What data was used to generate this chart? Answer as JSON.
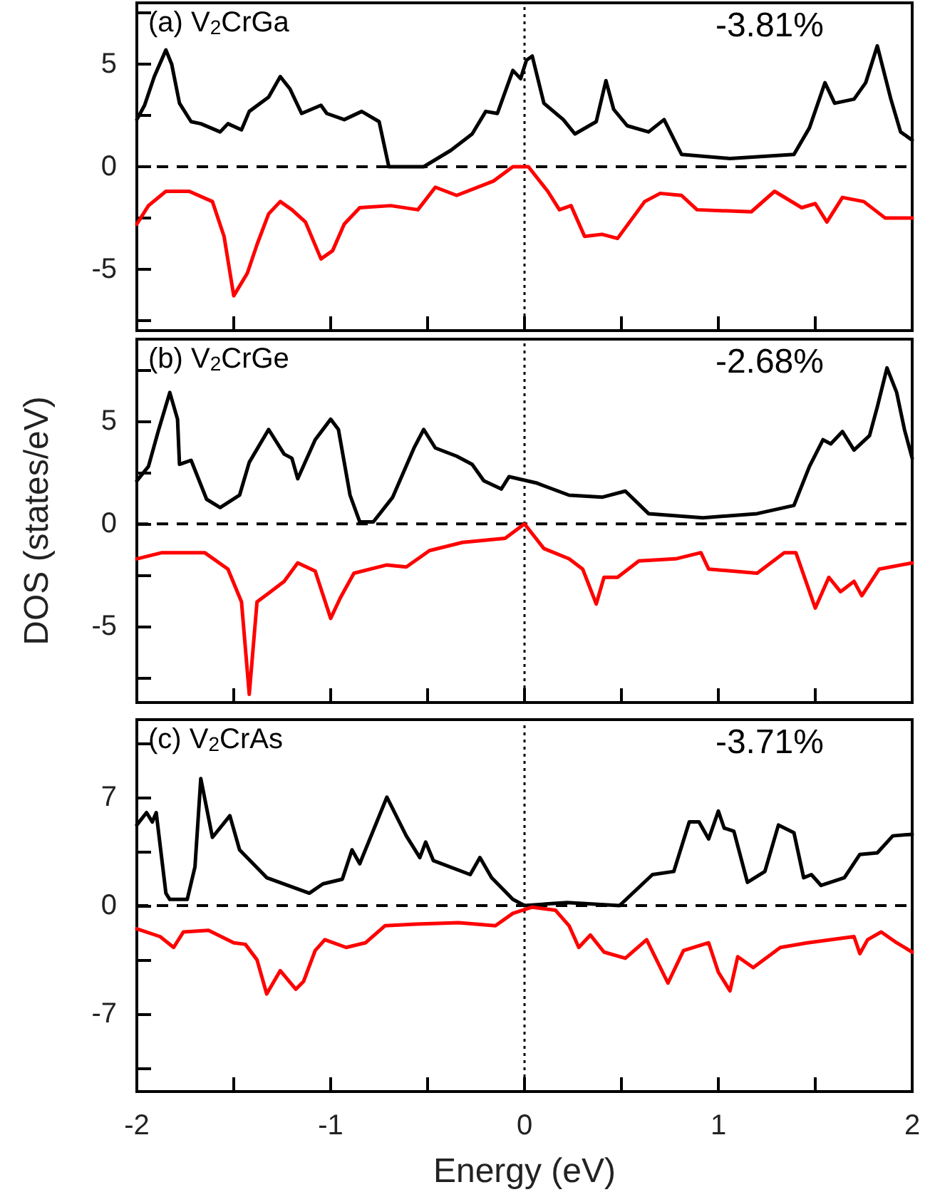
{
  "chart_data": [
    {
      "type": "line",
      "annotations": [
        "(a) V$_{2}$CrGa",
        "-3.81%"
      ],
      "xlim": [
        -2,
        2
      ],
      "ylim": [
        -8,
        8
      ],
      "xticks": [
        -2,
        {
          "value": -1.5,
          "label": null
        },
        -1,
        {
          "value": -0.5,
          "label": null
        },
        0,
        {
          "value": 0.5,
          "label": null
        },
        1,
        {
          "value": 1.5,
          "label": null
        },
        2
      ],
      "yticks": [
        {
          "value": -7.5,
          "label": null
        },
        -5,
        {
          "value": -2.5,
          "label": null
        },
        0,
        {
          "value": 2.5,
          "label": null
        },
        5,
        {
          "value": 7.5,
          "label": null
        }
      ],
      "tick_labels": "y",
      "line_style": "solid",
      "ref_lines": [
        {
          "axis": "y",
          "value": 0,
          "color": "#000000",
          "line_style": "dashed"
        },
        {
          "axis": "x",
          "value": 0,
          "color": "#000000",
          "line_style": "dotted"
        }
      ],
      "series": [
        {
          "color": "#000000",
          "x": [
            -2,
            -1.96,
            -1.91,
            -1.85,
            -1.82,
            -1.78,
            -1.72,
            -1.67,
            -1.57,
            -1.53,
            -1.46,
            -1.42,
            -1.32,
            -1.26,
            -1.21,
            -1.15,
            -1.1,
            -1.05,
            -1.02,
            -0.93,
            -0.84,
            -0.75,
            -0.7,
            -0.52,
            -0.38,
            -0.27,
            -0.2,
            -0.14,
            -0.06,
            -0.02,
            0.01,
            0.04,
            0.1,
            0.2,
            0.26,
            0.37,
            0.42,
            0.46,
            0.53,
            0.64,
            0.72,
            0.81,
            1.06,
            1.39,
            1.47,
            1.55,
            1.6,
            1.7,
            1.76,
            1.82,
            1.89,
            1.94,
            2
          ],
          "values": [
            2.3,
            3,
            4.4,
            5.7,
            5,
            3.1,
            2.2,
            2.1,
            1.7,
            2.1,
            1.8,
            2.7,
            3.4,
            4.4,
            3.8,
            2.6,
            2.8,
            3,
            2.6,
            2.3,
            2.7,
            2.2,
            0,
            0,
            0.8,
            1.6,
            2.7,
            2.6,
            4.7,
            4.3,
            5.2,
            5.4,
            3.1,
            2.3,
            1.6,
            2.2,
            4.2,
            2.8,
            2,
            1.7,
            2.3,
            0.6,
            0.4,
            0.6,
            1.9,
            4.1,
            3.1,
            3.3,
            4.1,
            5.9,
            3.3,
            1.7,
            1.3
          ]
        },
        {
          "color": "#ff0000",
          "x": [
            -2,
            -1.94,
            -1.85,
            -1.73,
            -1.61,
            -1.55,
            -1.5,
            -1.43,
            -1.38,
            -1.32,
            -1.26,
            -1.2,
            -1.13,
            -1.05,
            -0.99,
            -0.93,
            -0.85,
            -0.69,
            -0.55,
            -0.46,
            -0.35,
            -0.16,
            -0.06,
            0.02,
            0.12,
            0.18,
            0.24,
            0.31,
            0.4,
            0.48,
            0.62,
            0.7,
            0.81,
            0.89,
            1.17,
            1.29,
            1.43,
            1.5,
            1.56,
            1.64,
            1.75,
            1.86,
            2
          ],
          "values": [
            -2.8,
            -1.9,
            -1.2,
            -1.2,
            -1.7,
            -3.4,
            -6.3,
            -5.2,
            -3.8,
            -2.3,
            -1.7,
            -2.1,
            -2.7,
            -4.5,
            -4.1,
            -2.8,
            -2,
            -1.9,
            -2.1,
            -1,
            -1.4,
            -0.7,
            0,
            0,
            -1.2,
            -2.1,
            -1.9,
            -3.4,
            -3.3,
            -3.5,
            -1.7,
            -1.3,
            -1.4,
            -2.1,
            -2.2,
            -1.2,
            -2,
            -1.8,
            -2.7,
            -1.5,
            -1.7,
            -2.5,
            -2.5
          ]
        }
      ]
    },
    {
      "type": "line",
      "ylabel": "DOS (states/eV)",
      "annotations": [
        "(b) V$_{2}$CrGe",
        "-2.68%"
      ],
      "xlim": [
        -2,
        2
      ],
      "ylim": [
        -8.7,
        9
      ],
      "xticks": [
        -2,
        {
          "value": -1.5,
          "label": null
        },
        -1,
        {
          "value": -0.5,
          "label": null
        },
        0,
        {
          "value": 0.5,
          "label": null
        },
        1,
        {
          "value": 1.5,
          "label": null
        },
        2
      ],
      "yticks": [
        {
          "value": -7.5,
          "label": null
        },
        -5,
        {
          "value": -2.5,
          "label": null
        },
        0,
        {
          "value": 2.5,
          "label": null
        },
        5,
        {
          "value": 7.5,
          "label": null
        }
      ],
      "tick_labels": "y",
      "line_style": "solid",
      "ref_lines": [
        {
          "axis": "y",
          "value": 0,
          "color": "#000000",
          "line_style": "dashed"
        },
        {
          "axis": "x",
          "value": 0,
          "color": "#000000",
          "line_style": "dotted"
        }
      ],
      "series": [
        {
          "color": "#000000",
          "x": [
            -2,
            -1.94,
            -1.89,
            -1.83,
            -1.79,
            -1.78,
            -1.72,
            -1.64,
            -1.57,
            -1.47,
            -1.42,
            -1.32,
            -1.24,
            -1.2,
            -1.17,
            -1.08,
            -1,
            -0.96,
            -0.9,
            -0.85,
            -0.78,
            -0.68,
            -0.57,
            -0.52,
            -0.46,
            -0.35,
            -0.27,
            -0.21,
            -0.12,
            -0.08,
            0.06,
            0.23,
            0.4,
            0.52,
            0.64,
            0.92,
            1.2,
            1.39,
            1.47,
            1.54,
            1.58,
            1.64,
            1.7,
            1.78,
            1.82,
            1.87,
            1.92,
            1.96,
            2
          ],
          "values": [
            2.1,
            2.8,
            4.5,
            6.4,
            5.1,
            2.9,
            3.1,
            1.2,
            0.8,
            1.4,
            3,
            4.6,
            3.4,
            3.2,
            2.2,
            4.1,
            5.1,
            4.6,
            1.4,
            0.1,
            0.1,
            1.3,
            3.7,
            4.6,
            3.7,
            3.3,
            2.9,
            2.1,
            1.7,
            2.3,
            2,
            1.4,
            1.3,
            1.6,
            0.5,
            0.3,
            0.5,
            0.9,
            2.8,
            4.1,
            3.9,
            4.5,
            3.6,
            4.3,
            5.7,
            7.6,
            6.4,
            4.6,
            3.2
          ]
        },
        {
          "color": "#ff0000",
          "x": [
            -2,
            -1.87,
            -1.65,
            -1.53,
            -1.46,
            -1.42,
            -1.38,
            -1.31,
            -1.24,
            -1.17,
            -1.08,
            -1,
            -0.95,
            -0.88,
            -0.71,
            -0.61,
            -0.49,
            -0.32,
            -0.1,
            0,
            0.1,
            0.23,
            0.3,
            0.37,
            0.41,
            0.48,
            0.59,
            0.78,
            0.91,
            0.95,
            1.2,
            1.34,
            1.4,
            1.5,
            1.57,
            1.63,
            1.7,
            1.74,
            1.83,
            2
          ],
          "values": [
            -1.7,
            -1.4,
            -1.4,
            -2.2,
            -3.8,
            -8.3,
            -3.8,
            -3.3,
            -2.8,
            -1.9,
            -2.3,
            -4.6,
            -3.6,
            -2.4,
            -2,
            -2.1,
            -1.3,
            -0.9,
            -0.7,
            0,
            -1.2,
            -1.7,
            -2.2,
            -3.9,
            -2.6,
            -2.6,
            -1.8,
            -1.7,
            -1.4,
            -2.2,
            -2.4,
            -1.4,
            -1.4,
            -4.1,
            -2.6,
            -3.3,
            -2.8,
            -3.5,
            -2.2,
            -1.9
          ]
        }
      ]
    },
    {
      "type": "line",
      "xlabel": "Energy (eV)",
      "annotations": [
        "(c) V$_{2}$CrAs",
        "-3.71%"
      ],
      "xlim": [
        -2,
        2
      ],
      "ylim": [
        -12,
        12
      ],
      "xticks": [
        -2,
        {
          "value": -1.5,
          "label": null
        },
        -1,
        {
          "value": -0.5,
          "label": null
        },
        0,
        {
          "value": 0.5,
          "label": null
        },
        1,
        {
          "value": 1.5,
          "label": null
        },
        2
      ],
      "yticks": [
        {
          "value": -10.5,
          "label": null
        },
        -7,
        {
          "value": -3.5,
          "label": null
        },
        0,
        {
          "value": 3.5,
          "label": null
        },
        7,
        {
          "value": 10.5,
          "label": null
        }
      ],
      "line_style": "solid",
      "ref_lines": [
        {
          "axis": "y",
          "value": 0,
          "color": "#000000",
          "line_style": "dashed"
        },
        {
          "axis": "x",
          "value": 0,
          "color": "#000000",
          "line_style": "dotted"
        }
      ],
      "series": [
        {
          "color": "#000000",
          "x": [
            -2,
            -1.95,
            -1.92,
            -1.9,
            -1.85,
            -1.83,
            -1.74,
            -1.7,
            -1.67,
            -1.61,
            -1.52,
            -1.47,
            -1.33,
            -1.11,
            -1.04,
            -0.94,
            -0.89,
            -0.85,
            -0.71,
            -0.61,
            -0.54,
            -0.51,
            -0.47,
            -0.28,
            -0.23,
            -0.17,
            -0.06,
            0,
            0.22,
            0.49,
            0.66,
            0.77,
            0.85,
            0.9,
            0.95,
            1,
            1.03,
            1.08,
            1.15,
            1.24,
            1.31,
            1.39,
            1.44,
            1.48,
            1.53,
            1.65,
            1.73,
            1.82,
            1.9,
            2
          ],
          "values": [
            5.2,
            6,
            5.4,
            6,
            0.8,
            0.4,
            0.4,
            2.5,
            8.2,
            4.4,
            5.8,
            3.6,
            1.8,
            0.8,
            1.4,
            1.7,
            3.6,
            2.7,
            7,
            4.5,
            3.1,
            4.1,
            2.9,
            2,
            3.1,
            1.8,
            0.4,
            0,
            0.2,
            0,
            2,
            2.2,
            5.4,
            5.4,
            4.3,
            6.1,
            5,
            4.8,
            1.5,
            2.2,
            5.2,
            4.7,
            1.8,
            2,
            1.3,
            1.8,
            3.3,
            3.4,
            4.5,
            4.6
          ]
        },
        {
          "color": "#ff0000",
          "x": [
            -2,
            -1.88,
            -1.81,
            -1.76,
            -1.63,
            -1.5,
            -1.44,
            -1.38,
            -1.33,
            -1.26,
            -1.18,
            -1.14,
            -1.08,
            -1.03,
            -0.92,
            -0.82,
            -0.72,
            -0.56,
            -0.34,
            -0.15,
            -0.06,
            0.04,
            0.16,
            0.23,
            0.28,
            0.34,
            0.41,
            0.52,
            0.63,
            0.74,
            0.82,
            0.95,
            1,
            1.06,
            1.1,
            1.18,
            1.32,
            1.46,
            1.7,
            1.73,
            1.77,
            1.84,
            1.92,
            2
          ],
          "values": [
            -1.5,
            -2,
            -2.7,
            -1.7,
            -1.6,
            -2.4,
            -2.5,
            -3.5,
            -5.7,
            -4.2,
            -5.4,
            -4.9,
            -2.9,
            -2.2,
            -2.7,
            -2.4,
            -1.3,
            -1.2,
            -1.1,
            -1.3,
            -0.5,
            -0.1,
            -0.3,
            -1.3,
            -2.7,
            -1.9,
            -3,
            -3.4,
            -2.2,
            -5,
            -2.9,
            -2.4,
            -4.3,
            -5.5,
            -3.3,
            -4,
            -2.7,
            -2.4,
            -2,
            -3.1,
            -2.2,
            -1.7,
            -2.4,
            -3
          ]
        }
      ]
    }
  ]
}
